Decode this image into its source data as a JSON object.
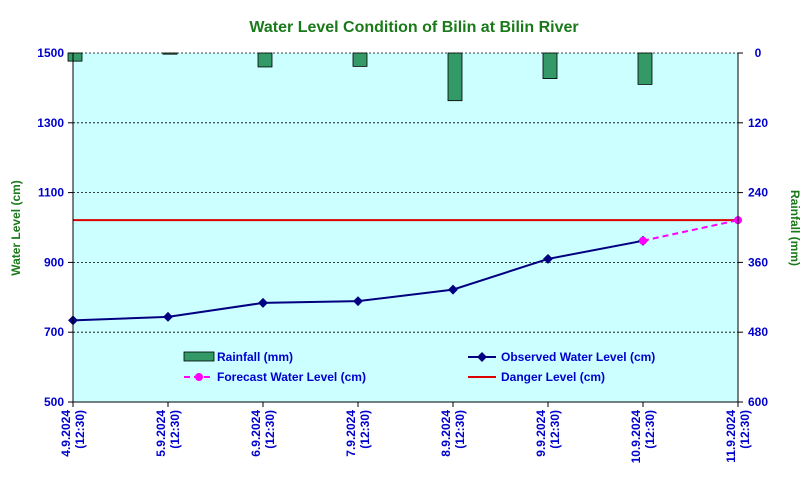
{
  "chart_data": {
    "type": "bar+line",
    "title": "Water Level Condition of Bilin at Bilin River",
    "ylabel_left": "Water Level (cm)",
    "ylabel_right": "Rainfall (mm)",
    "ylim_left": [
      500,
      1500
    ],
    "yticks_left": [
      500,
      700,
      900,
      1100,
      1300,
      1500
    ],
    "ylim_right": [
      0,
      600
    ],
    "yticks_right": [
      0,
      120,
      240,
      360,
      480,
      600
    ],
    "right_axis_inverted": true,
    "grid": true,
    "x_labels": [
      [
        "4.9.2024",
        "(12:30)"
      ],
      [
        "5.9.2024",
        "(12:30)"
      ],
      [
        "6.9.2024",
        "(12:30)"
      ],
      [
        "7.9.2024",
        "(12:30)"
      ],
      [
        "8.9.2024",
        "(12:30)"
      ],
      [
        "9.9.2024",
        "(12:30)"
      ],
      [
        "10.9.2024",
        "(12:30)"
      ],
      [
        "11.9.2024",
        "(12:30)"
      ]
    ],
    "series": [
      {
        "name": "Rainfall (mm)",
        "kind": "bar",
        "axis": "right",
        "color": "#339966",
        "values": [
          14,
          2,
          24,
          23,
          82,
          44,
          54
        ]
      },
      {
        "name": "Observed Water Level (cm)",
        "kind": "line",
        "axis": "left",
        "color": "#000080",
        "values": [
          734,
          744,
          784,
          789,
          822,
          910,
          962,
          null
        ]
      },
      {
        "name": "Forecast Water Level (cm)",
        "kind": "line-dashed",
        "axis": "left",
        "color": "#ff00ff",
        "values": [
          null,
          null,
          null,
          null,
          null,
          null,
          962,
          1021
        ]
      },
      {
        "name": "Danger Level (cm)",
        "kind": "hline",
        "axis": "left",
        "color": "#dd0000",
        "value": 1021
      }
    ],
    "legend_position": "bottom-inside",
    "colors": {
      "plot_background": "#ccffff",
      "axis": "#0000cc",
      "title": "#1a7a1a"
    }
  }
}
